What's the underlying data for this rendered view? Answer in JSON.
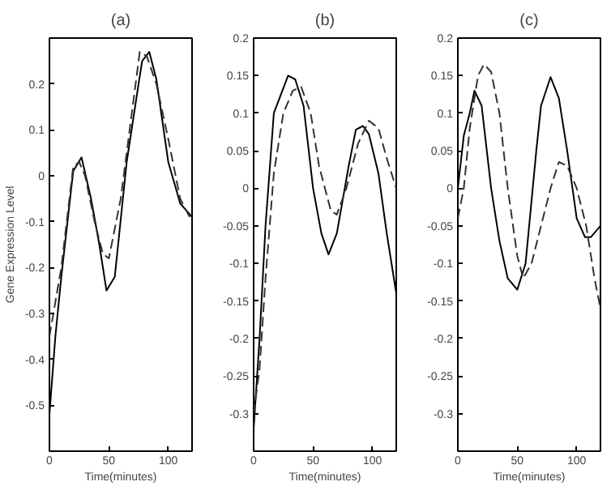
{
  "chart_data": [
    {
      "type": "line",
      "title": "(a)",
      "xlabel": "Time(minutes)",
      "ylabel": "Gene Expression Level",
      "xlim": [
        0,
        120
      ],
      "ylim": [
        -0.6,
        0.3
      ],
      "xticks": [
        0,
        50,
        100
      ],
      "yticks": [
        -0.5,
        -0.4,
        -0.3,
        -0.2,
        -0.1,
        0,
        0.1,
        0.2
      ],
      "grid": false,
      "series": [
        {
          "color": "#000000",
          "line_style": "solid",
          "x": [
            0,
            5,
            10,
            20,
            27,
            35,
            42,
            48,
            55,
            65,
            75,
            78,
            84,
            90,
            100,
            110,
            120
          ],
          "values": [
            -0.52,
            -0.35,
            -0.22,
            0.01,
            0.04,
            -0.05,
            -0.15,
            -0.25,
            -0.22,
            0.03,
            0.2,
            0.25,
            0.27,
            0.21,
            0.03,
            -0.06,
            -0.09
          ]
        },
        {
          "color": "#333333",
          "line_style": "dashed",
          "x": [
            0,
            10,
            20,
            25,
            30,
            38,
            45,
            50,
            60,
            70,
            76,
            82,
            90,
            100,
            110,
            120
          ],
          "values": [
            -0.35,
            -0.2,
            0.02,
            0.03,
            0.0,
            -0.1,
            -0.17,
            -0.18,
            -0.05,
            0.15,
            0.27,
            0.26,
            0.2,
            0.08,
            -0.05,
            -0.1
          ]
        }
      ]
    },
    {
      "type": "line",
      "title": "(b)",
      "xlabel": "Time(minutes)",
      "xlim": [
        0,
        120
      ],
      "ylim": [
        -0.35,
        0.2
      ],
      "xticks": [
        0,
        50,
        100
      ],
      "yticks": [
        -0.3,
        -0.25,
        -0.2,
        -0.15,
        -0.1,
        -0.05,
        0,
        0.05,
        0.1,
        0.15,
        0.2
      ],
      "grid": false,
      "series": [
        {
          "color": "#000000",
          "line_style": "solid",
          "x": [
            0,
            5,
            10,
            17,
            29,
            35,
            42,
            50,
            57,
            63,
            70,
            80,
            86,
            92,
            97,
            105,
            112,
            120
          ],
          "values": [
            -0.32,
            -0.2,
            -0.05,
            0.1,
            0.15,
            0.145,
            0.11,
            0.0,
            -0.06,
            -0.088,
            -0.06,
            0.03,
            0.078,
            0.083,
            0.072,
            0.02,
            -0.06,
            -0.14
          ]
        },
        {
          "color": "#333333",
          "line_style": "dashed",
          "x": [
            0,
            5,
            10,
            17,
            25,
            33,
            40,
            48,
            55,
            65,
            70,
            78,
            88,
            97,
            105,
            112,
            120
          ],
          "values": [
            -0.3,
            -0.24,
            -0.12,
            0.02,
            0.1,
            0.13,
            0.135,
            0.1,
            0.03,
            -0.03,
            -0.035,
            0.0,
            0.06,
            0.09,
            0.08,
            0.04,
            0.0
          ]
        }
      ]
    },
    {
      "type": "line",
      "title": "(c)",
      "xlabel": "Time(minutes)",
      "xlim": [
        0,
        120
      ],
      "ylim": [
        -0.35,
        0.2
      ],
      "xticks": [
        0,
        50,
        100
      ],
      "yticks": [
        -0.3,
        -0.25,
        -0.2,
        -0.15,
        -0.1,
        -0.05,
        0,
        0.05,
        0.1,
        0.15,
        0.2
      ],
      "grid": false,
      "series": [
        {
          "color": "#000000",
          "line_style": "solid",
          "x": [
            0,
            5,
            10,
            14,
            20,
            28,
            35,
            42,
            50,
            57,
            66,
            70,
            78,
            85,
            92,
            100,
            107,
            112,
            120
          ],
          "values": [
            0.0,
            0.07,
            0.1,
            0.13,
            0.11,
            0.0,
            -0.07,
            -0.12,
            -0.135,
            -0.1,
            0.05,
            0.11,
            0.148,
            0.12,
            0.05,
            -0.04,
            -0.065,
            -0.065,
            -0.05
          ]
        },
        {
          "color": "#333333",
          "line_style": "dashed",
          "x": [
            0,
            5,
            10,
            17,
            22,
            28,
            35,
            42,
            50,
            55,
            62,
            70,
            78,
            85,
            92,
            100,
            108,
            115,
            120
          ],
          "values": [
            -0.04,
            0.0,
            0.08,
            0.15,
            0.165,
            0.155,
            0.1,
            0.0,
            -0.09,
            -0.12,
            -0.1,
            -0.05,
            0.0,
            0.035,
            0.03,
            0.0,
            -0.05,
            -0.12,
            -0.16
          ]
        }
      ]
    }
  ]
}
